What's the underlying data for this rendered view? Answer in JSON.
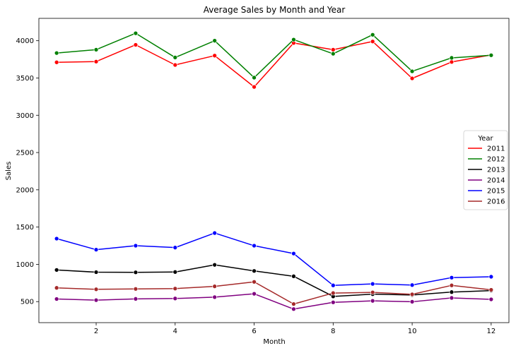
{
  "chart_data": {
    "type": "line",
    "title": "Average Sales by Month and Year",
    "xlabel": "Month",
    "ylabel": "Sales",
    "xlim": [
      0.55,
      12.45
    ],
    "ylim": [
      218,
      4300
    ],
    "xticks": [
      2,
      4,
      6,
      8,
      10,
      12
    ],
    "yticks": [
      500,
      1000,
      1500,
      2000,
      2500,
      3000,
      3500,
      4000
    ],
    "grid": false,
    "legend": {
      "title": "Year",
      "placement": "center-right"
    },
    "x": [
      1,
      2,
      3,
      4,
      5,
      6,
      7,
      8,
      9,
      10,
      11,
      12
    ],
    "series": [
      {
        "name": "2011",
        "color": "#ff0000",
        "values": [
          3710,
          3720,
          3945,
          3675,
          3800,
          3380,
          3970,
          3880,
          3990,
          3495,
          3715,
          3810
        ]
      },
      {
        "name": "2012",
        "color": "#008000",
        "values": [
          3835,
          3880,
          4100,
          3775,
          4000,
          3505,
          4015,
          3825,
          4080,
          3590,
          3770,
          3805
        ]
      },
      {
        "name": "2013",
        "color": "#000000",
        "values": [
          925,
          895,
          893,
          897,
          993,
          912,
          840,
          570,
          600,
          588,
          628,
          648
        ]
      },
      {
        "name": "2014",
        "color": "#800080",
        "values": [
          535,
          520,
          537,
          542,
          560,
          605,
          400,
          490,
          510,
          498,
          550,
          530
        ]
      },
      {
        "name": "2015",
        "color": "#0000ff",
        "values": [
          1345,
          1197,
          1250,
          1225,
          1420,
          1250,
          1145,
          718,
          738,
          722,
          822,
          834
        ]
      },
      {
        "name": "2016",
        "color": "#a52a2a",
        "values": [
          685,
          665,
          670,
          675,
          705,
          765,
          468,
          615,
          624,
          598,
          718,
          658
        ]
      }
    ]
  }
}
